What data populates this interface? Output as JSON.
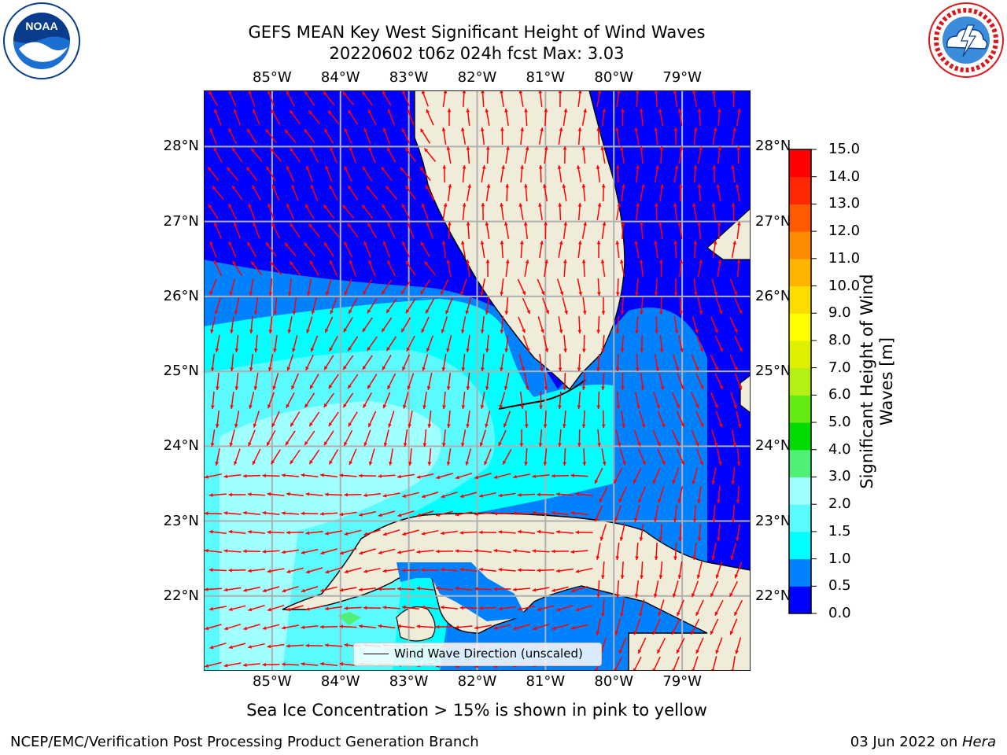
{
  "header": {
    "title_line1": "GEFS MEAN Key West Significant Height of Wind Waves",
    "title_line2": "20220602 t06z 024h fcst   Max: 3.03"
  },
  "logos": {
    "left": {
      "text": "NOAA",
      "ring_text": "NATIONAL OCEANIC AND ATMOSPHERIC ADMINISTRATION · U.S. DEPARTMENT OF COMMERCE",
      "color": "#0a3c8c"
    },
    "right": {
      "ring_text": "NATIONAL WEATHER SERVICE",
      "color": "#d7191c"
    }
  },
  "map": {
    "lon_labels": [
      "85°W",
      "84°W",
      "83°W",
      "82°W",
      "81°W",
      "80°W",
      "79°W"
    ],
    "lat_labels": [
      "28°N",
      "27°N",
      "26°N",
      "25°N",
      "24°N",
      "23°N",
      "22°N"
    ],
    "lon_range": [
      -86.0,
      -78.0
    ],
    "lat_range": [
      21.0,
      28.75
    ],
    "grid": true,
    "land_color": "#efedd9",
    "arrow_color": "#ff0000"
  },
  "legend": {
    "label": "Wind Wave Direction (unscaled)",
    "placement": "lower-center"
  },
  "colorbar": {
    "label": "Significant Height of Wind Waves [m]",
    "ticks": [
      "0.0",
      "0.5",
      "1.0",
      "1.5",
      "2.0",
      "3.0",
      "4.0",
      "5.0",
      "6.0",
      "7.0",
      "8.0",
      "9.0",
      "10.0",
      "11.0",
      "12.0",
      "13.0",
      "14.0",
      "15.0"
    ],
    "colors": [
      "#0000ff",
      "#0082ff",
      "#00ffff",
      "#5afaff",
      "#a0ffff",
      "#50f078",
      "#00dc00",
      "#64eb14",
      "#b4f014",
      "#dcf000",
      "#ffff00",
      "#ffdc00",
      "#ffb400",
      "#ff8c00",
      "#ff5a00",
      "#ff2800",
      "#ff0000"
    ]
  },
  "caption": "Sea Ice Concentration > 15% is shown in pink to yellow",
  "footer": {
    "left": "NCEP/EMC/Verification Post Processing Product Generation Branch",
    "right_prefix": "03 Jun 2022 on ",
    "right_host": "Hera"
  }
}
